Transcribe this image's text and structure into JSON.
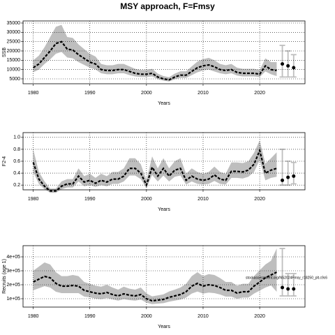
{
  "title": "MSY approach, F=Fmsy",
  "chart_data": [
    {
      "type": "line",
      "ylabel": "SSB",
      "xlabel": "Years",
      "xlim": [
        1978.2,
        2028
      ],
      "xticks": [
        1980,
        1990,
        2000,
        2010,
        2020
      ],
      "ylim": [
        2375,
        36125
      ],
      "yticks": [
        5000,
        10000,
        15000,
        20000,
        25000,
        30000,
        35000
      ],
      "grid": true,
      "line_color": "#000000",
      "band_color": "#bebebe",
      "projection_color": "#bebebe",
      "x": [
        1980,
        1981,
        1982,
        1983,
        1984,
        1985,
        1986,
        1987,
        1988,
        1989,
        1990,
        1991,
        1992,
        1993,
        1994,
        1995,
        1996,
        1997,
        1998,
        1999,
        2000,
        2001,
        2002,
        2003,
        2004,
        2005,
        2006,
        2007,
        2008,
        2009,
        2010,
        2011,
        2012,
        2013,
        2014,
        2015,
        2016,
        2017,
        2018,
        2019,
        2020,
        2021,
        2022,
        2023
      ],
      "values": [
        11000,
        13000,
        16500,
        20000,
        24000,
        25000,
        21000,
        20500,
        18000,
        16000,
        14000,
        13000,
        10000,
        9500,
        9500,
        10000,
        10000,
        9000,
        8000,
        7500,
        7500,
        8000,
        6000,
        5000,
        4500,
        6000,
        7000,
        7000,
        9000,
        11000,
        12000,
        12500,
        11500,
        10000,
        9500,
        10000,
        8500,
        8000,
        8000,
        8000,
        7500,
        12000,
        10000,
        9500
      ],
      "lower": [
        8500,
        10000,
        13000,
        15500,
        18500,
        19500,
        16500,
        16000,
        14000,
        12500,
        11000,
        10000,
        8000,
        7500,
        7500,
        8000,
        8000,
        7000,
        6300,
        6000,
        6000,
        6300,
        4800,
        4000,
        3600,
        4800,
        5500,
        5500,
        7000,
        8500,
        9500,
        10000,
        9000,
        8000,
        7500,
        8000,
        6800,
        6300,
        6300,
        6300,
        6000,
        9000,
        7500,
        6500
      ],
      "upper": [
        15000,
        17500,
        22000,
        27500,
        33000,
        34000,
        27500,
        27000,
        23500,
        21000,
        18500,
        17000,
        13000,
        12300,
        12300,
        13000,
        13000,
        11700,
        10400,
        9800,
        9800,
        10400,
        7800,
        6500,
        5900,
        7800,
        9100,
        9100,
        11700,
        14300,
        15600,
        16300,
        15000,
        13000,
        12300,
        13000,
        11000,
        10400,
        10400,
        10400,
        9800,
        16000,
        14000,
        14000
      ],
      "projection": {
        "x": [
          2024,
          2025,
          2026
        ],
        "values": [
          13000,
          12000,
          11000
        ],
        "lower": [
          6000,
          6000,
          6000
        ],
        "upper": [
          23000,
          20000,
          18000
        ]
      }
    },
    {
      "type": "line",
      "ylabel": "F2-4",
      "xlabel": "Years",
      "xlim": [
        1978.2,
        2028
      ],
      "xticks": [
        1980,
        1990,
        2000,
        2010,
        2020
      ],
      "ylim": [
        0.12,
        1.08
      ],
      "yticks": [
        0.2,
        0.4,
        0.6,
        0.8,
        {
          "value": 1.0,
          "label": "1.0"
        }
      ],
      "grid": true,
      "line_color": "#000000",
      "band_color": "#bebebe",
      "projection_color": "#bebebe",
      "x": [
        1980,
        1981,
        1982,
        1983,
        1984,
        1985,
        1986,
        1987,
        1988,
        1989,
        1990,
        1991,
        1992,
        1993,
        1994,
        1995,
        1996,
        1997,
        1998,
        1999,
        2000,
        2001,
        2002,
        2003,
        2004,
        2005,
        2006,
        2007,
        2008,
        2009,
        2010,
        2011,
        2012,
        2013,
        2014,
        2015,
        2016,
        2017,
        2018,
        2019,
        2020,
        2021,
        2022,
        2023
      ],
      "values": [
        0.58,
        0.3,
        0.18,
        0.1,
        0.1,
        0.18,
        0.22,
        0.22,
        0.35,
        0.25,
        0.28,
        0.23,
        0.28,
        0.25,
        0.3,
        0.3,
        0.35,
        0.48,
        0.48,
        0.4,
        0.2,
        0.5,
        0.35,
        0.48,
        0.35,
        0.45,
        0.48,
        0.28,
        0.35,
        0.3,
        0.28,
        0.3,
        0.37,
        0.3,
        0.28,
        0.43,
        0.43,
        0.42,
        0.45,
        0.55,
        0.78,
        0.4,
        0.45,
        0.48
      ],
      "lower": [
        0.42,
        0.22,
        0.13,
        0.07,
        0.07,
        0.13,
        0.16,
        0.16,
        0.26,
        0.18,
        0.2,
        0.17,
        0.2,
        0.18,
        0.22,
        0.22,
        0.26,
        0.36,
        0.36,
        0.3,
        0.15,
        0.37,
        0.26,
        0.36,
        0.26,
        0.34,
        0.36,
        0.21,
        0.26,
        0.22,
        0.21,
        0.22,
        0.27,
        0.22,
        0.21,
        0.32,
        0.32,
        0.31,
        0.34,
        0.42,
        0.62,
        0.28,
        0.32,
        0.34
      ],
      "upper": [
        0.8,
        0.42,
        0.26,
        0.14,
        0.14,
        0.26,
        0.3,
        0.3,
        0.48,
        0.35,
        0.39,
        0.32,
        0.39,
        0.35,
        0.42,
        0.42,
        0.48,
        0.65,
        0.65,
        0.55,
        0.28,
        0.68,
        0.48,
        0.65,
        0.48,
        0.6,
        0.65,
        0.39,
        0.48,
        0.42,
        0.39,
        0.42,
        0.51,
        0.42,
        0.39,
        0.58,
        0.58,
        0.57,
        0.6,
        0.74,
        0.95,
        0.56,
        0.65,
        0.75
      ],
      "projection": {
        "x": [
          2024,
          2025,
          2026
        ],
        "values": [
          0.28,
          0.33,
          0.35
        ],
        "lower": [
          0.2,
          0.2,
          0.22
        ],
        "upper": [
          0.8,
          0.6,
          0.58
        ]
      }
    },
    {
      "type": "line",
      "ylabel": "Recruits (age 1)",
      "xlabel": "Years",
      "annotation": "stockassessment.org/NS2024Fmsy_r18250_plt.c9c6",
      "xlim": [
        1978.2,
        2028
      ],
      "xticks": [
        1980,
        1990,
        2000,
        2010,
        2020
      ],
      "ylim": [
        40000,
        480000
      ],
      "yticks": [
        {
          "value": 100000,
          "label": "1e+05"
        },
        {
          "value": 200000,
          "label": "2e+05"
        },
        {
          "value": 300000,
          "label": "3e+05"
        },
        {
          "value": 400000,
          "label": "4e+05"
        }
      ],
      "grid": true,
      "line_color": "#000000",
      "band_color": "#bebebe",
      "projection_color": "#bebebe",
      "x": [
        1980,
        1981,
        1982,
        1983,
        1984,
        1985,
        1986,
        1987,
        1988,
        1989,
        1990,
        1991,
        1992,
        1993,
        1994,
        1995,
        1996,
        1997,
        1998,
        1999,
        2000,
        2001,
        2002,
        2003,
        2004,
        2005,
        2006,
        2007,
        2008,
        2009,
        2010,
        2011,
        2012,
        2013,
        2014,
        2015,
        2016,
        2017,
        2018,
        2019,
        2020,
        2021,
        2022,
        2023
      ],
      "values": [
        220000,
        240000,
        260000,
        250000,
        210000,
        190000,
        190000,
        195000,
        190000,
        160000,
        150000,
        140000,
        135000,
        145000,
        130000,
        120000,
        135000,
        125000,
        120000,
        130000,
        100000,
        85000,
        90000,
        95000,
        110000,
        120000,
        130000,
        150000,
        190000,
        210000,
        190000,
        200000,
        195000,
        180000,
        160000,
        160000,
        140000,
        150000,
        150000,
        190000,
        220000,
        250000,
        270000,
        290000
      ],
      "lower": [
        160000,
        175000,
        190000,
        180000,
        150000,
        140000,
        140000,
        140000,
        140000,
        115000,
        110000,
        100000,
        97000,
        105000,
        95000,
        86000,
        97000,
        90000,
        86000,
        94000,
        72000,
        61000,
        65000,
        68000,
        79000,
        86000,
        94000,
        108000,
        137000,
        151000,
        137000,
        144000,
        140000,
        130000,
        115000,
        115000,
        100000,
        108000,
        108000,
        137000,
        158000,
        180000,
        195000,
        150000
      ],
      "upper": [
        300000,
        330000,
        360000,
        345000,
        290000,
        262000,
        262000,
        270000,
        262000,
        220000,
        207000,
        193000,
        186000,
        200000,
        180000,
        165000,
        186000,
        172000,
        165000,
        180000,
        138000,
        117000,
        124000,
        131000,
        152000,
        165000,
        180000,
        207000,
        262000,
        290000,
        262000,
        276000,
        270000,
        248000,
        220000,
        220000,
        193000,
        207000,
        207000,
        262000,
        304000,
        345000,
        372000,
        460000
      ],
      "projection": {
        "x": [
          2024,
          2025,
          2026
        ],
        "values": [
          180000,
          170000,
          170000
        ],
        "lower": [
          120000,
          120000,
          120000
        ],
        "upper": [
          460000,
          280000,
          280000
        ]
      }
    }
  ]
}
